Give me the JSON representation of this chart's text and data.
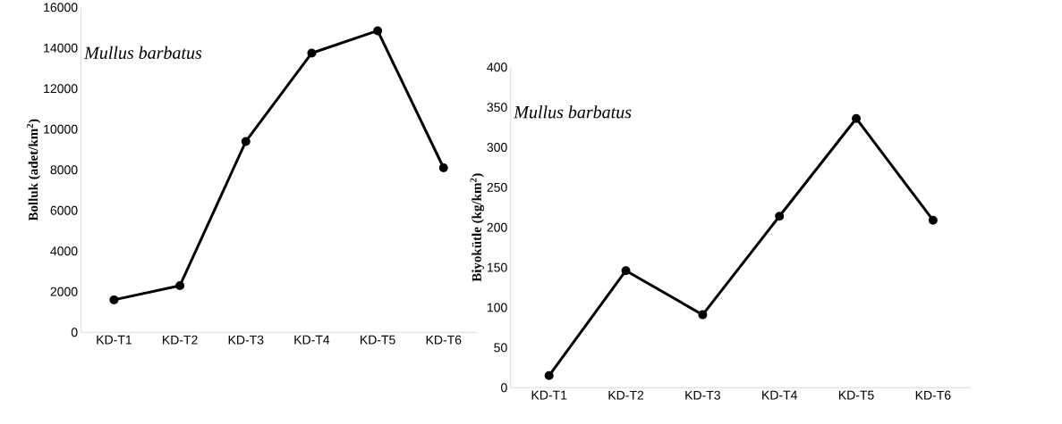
{
  "chart_data": [
    {
      "type": "line",
      "ylabel": "**Bolluk (adet/km$^{2}$)**",
      "categories": [
        "KD-T1",
        "KD-T2",
        "KD-T3",
        "KD-T4",
        "KD-T5",
        "KD-T6"
      ],
      "series": [
        {
          "color": "#000000",
          "values": [
            1600,
            2300,
            9400,
            13750,
            14850,
            8100
          ]
        }
      ],
      "ylim": [
        0,
        16000
      ],
      "yticks": [
        0,
        2000,
        4000,
        6000,
        8000,
        10000,
        12000,
        14000,
        16000
      ],
      "marker": "circle",
      "line_style": "solid",
      "annotations": [
        "*Mullus barbatus*"
      ]
    },
    {
      "type": "line",
      "ylabel": "**Biyokütle (kg/km$^{2}$)**",
      "categories": [
        "KD-T1",
        "KD-T2",
        "KD-T3",
        "KD-T4",
        "KD-T5",
        "KD-T6"
      ],
      "series": [
        {
          "color": "#000000",
          "values": [
            15,
            146,
            91,
            214,
            336,
            209
          ]
        }
      ],
      "ylim": [
        0,
        400
      ],
      "yticks": [
        0,
        50,
        100,
        150,
        200,
        250,
        300,
        350,
        400
      ],
      "marker": "circle",
      "line_style": "solid",
      "annotations": [
        "*Mullus barbatus*"
      ]
    }
  ]
}
